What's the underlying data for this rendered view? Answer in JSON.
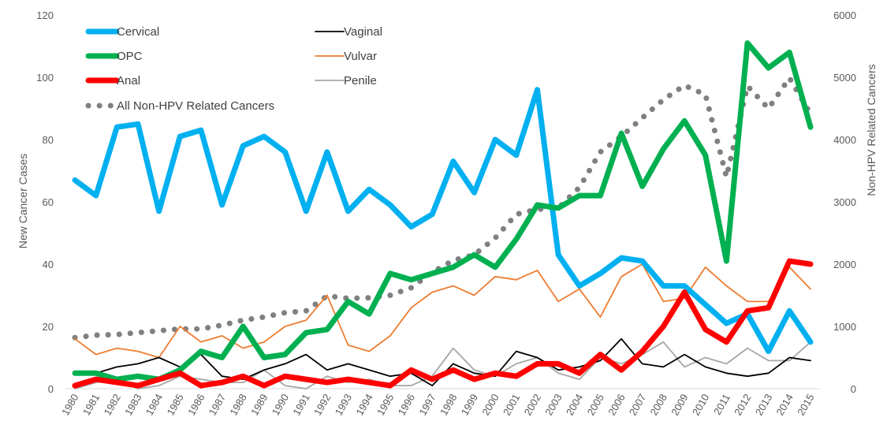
{
  "chart_data": {
    "type": "line",
    "title": "",
    "xlabel": "",
    "ylabel": "New Cancer Cases",
    "y2label": "Non-HPV Related Cancers",
    "ylim": [
      0,
      120
    ],
    "y2lim": [
      0,
      6000
    ],
    "yticks": [
      0,
      20,
      40,
      60,
      80,
      100,
      120
    ],
    "y2ticks": [
      0,
      1000,
      2000,
      3000,
      4000,
      5000,
      6000
    ],
    "grid": false,
    "legend_position": "top-left",
    "x": [
      1980,
      1981,
      1982,
      1983,
      1984,
      1985,
      1986,
      1987,
      1988,
      1989,
      1990,
      1991,
      1992,
      1993,
      1994,
      1995,
      1996,
      1997,
      1998,
      1999,
      2000,
      2001,
      2002,
      2003,
      2004,
      2005,
      2006,
      2007,
      2008,
      2009,
      2010,
      2011,
      2012,
      2013,
      2014,
      2015
    ],
    "x_labels": [
      "1980",
      "1981",
      "1982",
      "1983",
      "1984",
      "1985",
      "1986",
      "1987",
      "1988",
      "1989",
      "1990",
      "1991",
      "1992",
      "1993",
      "1994",
      "1995",
      "1996",
      "1997",
      "1998",
      "1999",
      "2000",
      "2001",
      "2002",
      "2003",
      "2004",
      "2005",
      "2006",
      "2007",
      "2008",
      "2009",
      "2010",
      "2011",
      "2012",
      "2013",
      "2014",
      "2015"
    ],
    "series": [
      {
        "name": "Cervical",
        "axis": "left",
        "color": "#00B0F0",
        "style": "thick",
        "values": [
          67,
          62,
          84,
          85,
          57,
          81,
          83,
          59,
          78,
          81,
          76,
          57,
          76,
          57,
          64,
          59,
          52,
          56,
          73,
          63,
          80,
          75,
          96,
          43,
          33,
          37,
          42,
          41,
          33,
          33,
          27,
          21,
          24,
          12,
          25,
          15
        ]
      },
      {
        "name": "Vaginal",
        "axis": "left",
        "color": "#000000",
        "style": "thin",
        "values": [
          5,
          5,
          7,
          8,
          10,
          7,
          11,
          4,
          3,
          6,
          8,
          11,
          6,
          8,
          6,
          4,
          5,
          1,
          8,
          5,
          4,
          12,
          10,
          6,
          7,
          9,
          16,
          8,
          7,
          11,
          7,
          5,
          4,
          5,
          10,
          9
        ]
      },
      {
        "name": "OPC",
        "axis": "left",
        "color": "#00B050",
        "style": "thick",
        "values": [
          5,
          5,
          3,
          4,
          3,
          6,
          12,
          10,
          20,
          10,
          11,
          18,
          19,
          28,
          24,
          37,
          35,
          37,
          39,
          43,
          39,
          48,
          59,
          58,
          62,
          62,
          82,
          65,
          77,
          86,
          75,
          41,
          111,
          103,
          108,
          84
        ]
      },
      {
        "name": "Vulvar",
        "axis": "left",
        "color": "#ED7D31",
        "style": "thin",
        "values": [
          16,
          11,
          13,
          12,
          10,
          20,
          15,
          17,
          13,
          15,
          20,
          22,
          30,
          14,
          12,
          17,
          26,
          31,
          33,
          30,
          36,
          35,
          38,
          28,
          32,
          23,
          36,
          40,
          28,
          29,
          39,
          33,
          28,
          28,
          39,
          32
        ]
      },
      {
        "name": "Anal",
        "axis": "left",
        "color": "#FF0000",
        "style": "thick",
        "values": [
          1,
          3,
          2,
          1,
          3,
          5,
          1,
          2,
          4,
          1,
          4,
          3,
          2,
          3,
          2,
          1,
          6,
          3,
          6,
          3,
          5,
          4,
          8,
          8,
          5,
          11,
          6,
          12,
          20,
          31,
          19,
          15,
          25,
          26,
          41,
          40
        ]
      },
      {
        "name": "Penile",
        "axis": "left",
        "color": "#A6A6A6",
        "style": "thin",
        "values": [
          0,
          2,
          3,
          0,
          1,
          4,
          3,
          2,
          2,
          6,
          1,
          0,
          4,
          2,
          3,
          1,
          1,
          4,
          13,
          6,
          4,
          8,
          10,
          5,
          3,
          10,
          8,
          11,
          15,
          7,
          10,
          8,
          13,
          9,
          9,
          15
        ]
      },
      {
        "name": "All Non-HPV Related Cancers",
        "axis": "right",
        "color": "#808080",
        "style": "dotted",
        "values": [
          820,
          860,
          870,
          900,
          930,
          960,
          960,
          1020,
          1100,
          1150,
          1220,
          1250,
          1490,
          1450,
          1460,
          1500,
          1620,
          1870,
          2060,
          2150,
          2420,
          2800,
          2880,
          2900,
          3230,
          3800,
          4050,
          4350,
          4640,
          4870,
          4720,
          3400,
          4860,
          4500,
          4990,
          4410
        ]
      }
    ]
  }
}
